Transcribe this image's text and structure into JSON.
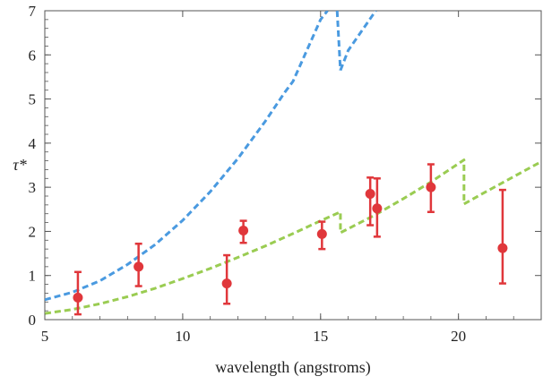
{
  "chart_data": {
    "type": "scatter",
    "xlabel": "wavelength (angstroms)",
    "ylabel": "τ*",
    "xlim": [
      5,
      23
    ],
    "ylim": [
      0,
      7
    ],
    "x_ticks": [
      5,
      10,
      15,
      20
    ],
    "y_ticks": [
      0,
      1,
      2,
      3,
      4,
      5,
      6,
      7
    ],
    "grid": false,
    "frame": true,
    "colors": {
      "points": "#e0373b",
      "blue_curve": "#4a9ae0",
      "green_curve": "#9acc52",
      "axis": "#555555"
    },
    "points": [
      {
        "x": 6.2,
        "y": 0.5,
        "ylow": 0.12,
        "yhigh": 1.08
      },
      {
        "x": 8.4,
        "y": 1.2,
        "ylow": 0.76,
        "yhigh": 1.72
      },
      {
        "x": 11.6,
        "y": 0.82,
        "ylow": 0.36,
        "yhigh": 1.46
      },
      {
        "x": 12.2,
        "y": 2.02,
        "ylow": 1.74,
        "yhigh": 2.24
      },
      {
        "x": 15.05,
        "y": 1.94,
        "ylow": 1.6,
        "yhigh": 2.22
      },
      {
        "x": 16.8,
        "y": 2.85,
        "ylow": 2.14,
        "yhigh": 3.22
      },
      {
        "x": 17.05,
        "y": 2.52,
        "ylow": 1.88,
        "yhigh": 3.2
      },
      {
        "x": 19.0,
        "y": 3.0,
        "ylow": 2.44,
        "yhigh": 3.52
      },
      {
        "x": 21.6,
        "y": 1.62,
        "ylow": 0.82,
        "yhigh": 2.94
      }
    ],
    "curves": [
      {
        "color_key": "blue_curve",
        "segments": [
          [
            [
              5.0,
              0.45
            ],
            [
              6.0,
              0.62
            ],
            [
              7.0,
              0.88
            ],
            [
              8.0,
              1.25
            ],
            [
              9.0,
              1.7
            ],
            [
              10.0,
              2.25
            ],
            [
              11.0,
              2.9
            ],
            [
              12.0,
              3.65
            ],
            [
              13.0,
              4.5
            ],
            [
              13.7,
              5.15
            ],
            [
              14.0,
              5.4
            ],
            [
              14.5,
              6.1
            ],
            [
              15.0,
              6.8
            ],
            [
              15.25,
              7.0
            ]
          ],
          [
            [
              15.6,
              7.0
            ],
            [
              15.72,
              5.65
            ]
          ],
          [
            [
              15.72,
              5.65
            ],
            [
              16.0,
              6.1
            ],
            [
              16.5,
              6.55
            ],
            [
              17.0,
              7.0
            ]
          ]
        ]
      },
      {
        "color_key": "green_curve",
        "segments": [
          [
            [
              5.0,
              0.14
            ],
            [
              6.0,
              0.23
            ],
            [
              7.0,
              0.36
            ],
            [
              8.0,
              0.52
            ],
            [
              9.0,
              0.71
            ],
            [
              10.0,
              0.93
            ],
            [
              11.0,
              1.16
            ],
            [
              12.0,
              1.41
            ],
            [
              13.0,
              1.67
            ],
            [
              14.0,
              1.95
            ],
            [
              15.0,
              2.24
            ],
            [
              15.72,
              2.44
            ],
            [
              15.72,
              1.97
            ],
            [
              17.0,
              2.38
            ],
            [
              18.0,
              2.74
            ],
            [
              19.0,
              3.12
            ],
            [
              20.2,
              3.62
            ],
            [
              20.2,
              2.62
            ],
            [
              21.0,
              2.9
            ],
            [
              22.0,
              3.24
            ],
            [
              23.0,
              3.58
            ]
          ]
        ]
      }
    ]
  }
}
